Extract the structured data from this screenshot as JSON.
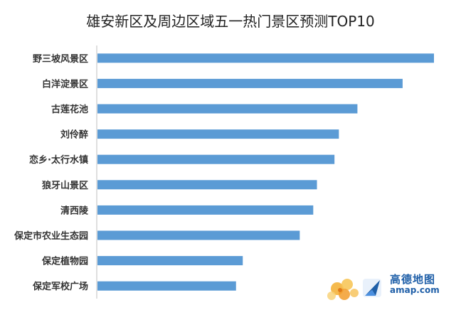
{
  "chart_data": {
    "type": "bar",
    "orientation": "horizontal",
    "title": "雄安新区及周边区域五一热门景区预测TOP10",
    "categories": [
      "野三坡风景区",
      "白洋淀景区",
      "古莲花池",
      "刘伶醉",
      "恋乡·太行水镇",
      "狼牙山景区",
      "清西陵",
      "保定市农业生态园",
      "保定植物园",
      "保定军校广场"
    ],
    "values": [
      100,
      90.7,
      77.3,
      71.8,
      70.5,
      65.3,
      64.2,
      60.2,
      43.3,
      41.3
    ],
    "xlim": [
      0,
      100
    ],
    "grid": false,
    "legend": "none",
    "bar_color": "#5b9bd5",
    "axis_color": "#bfbfbf"
  },
  "logo": {
    "brand": "高德地图",
    "domain": "amap.com",
    "accent_color": "#1f5fa8"
  }
}
